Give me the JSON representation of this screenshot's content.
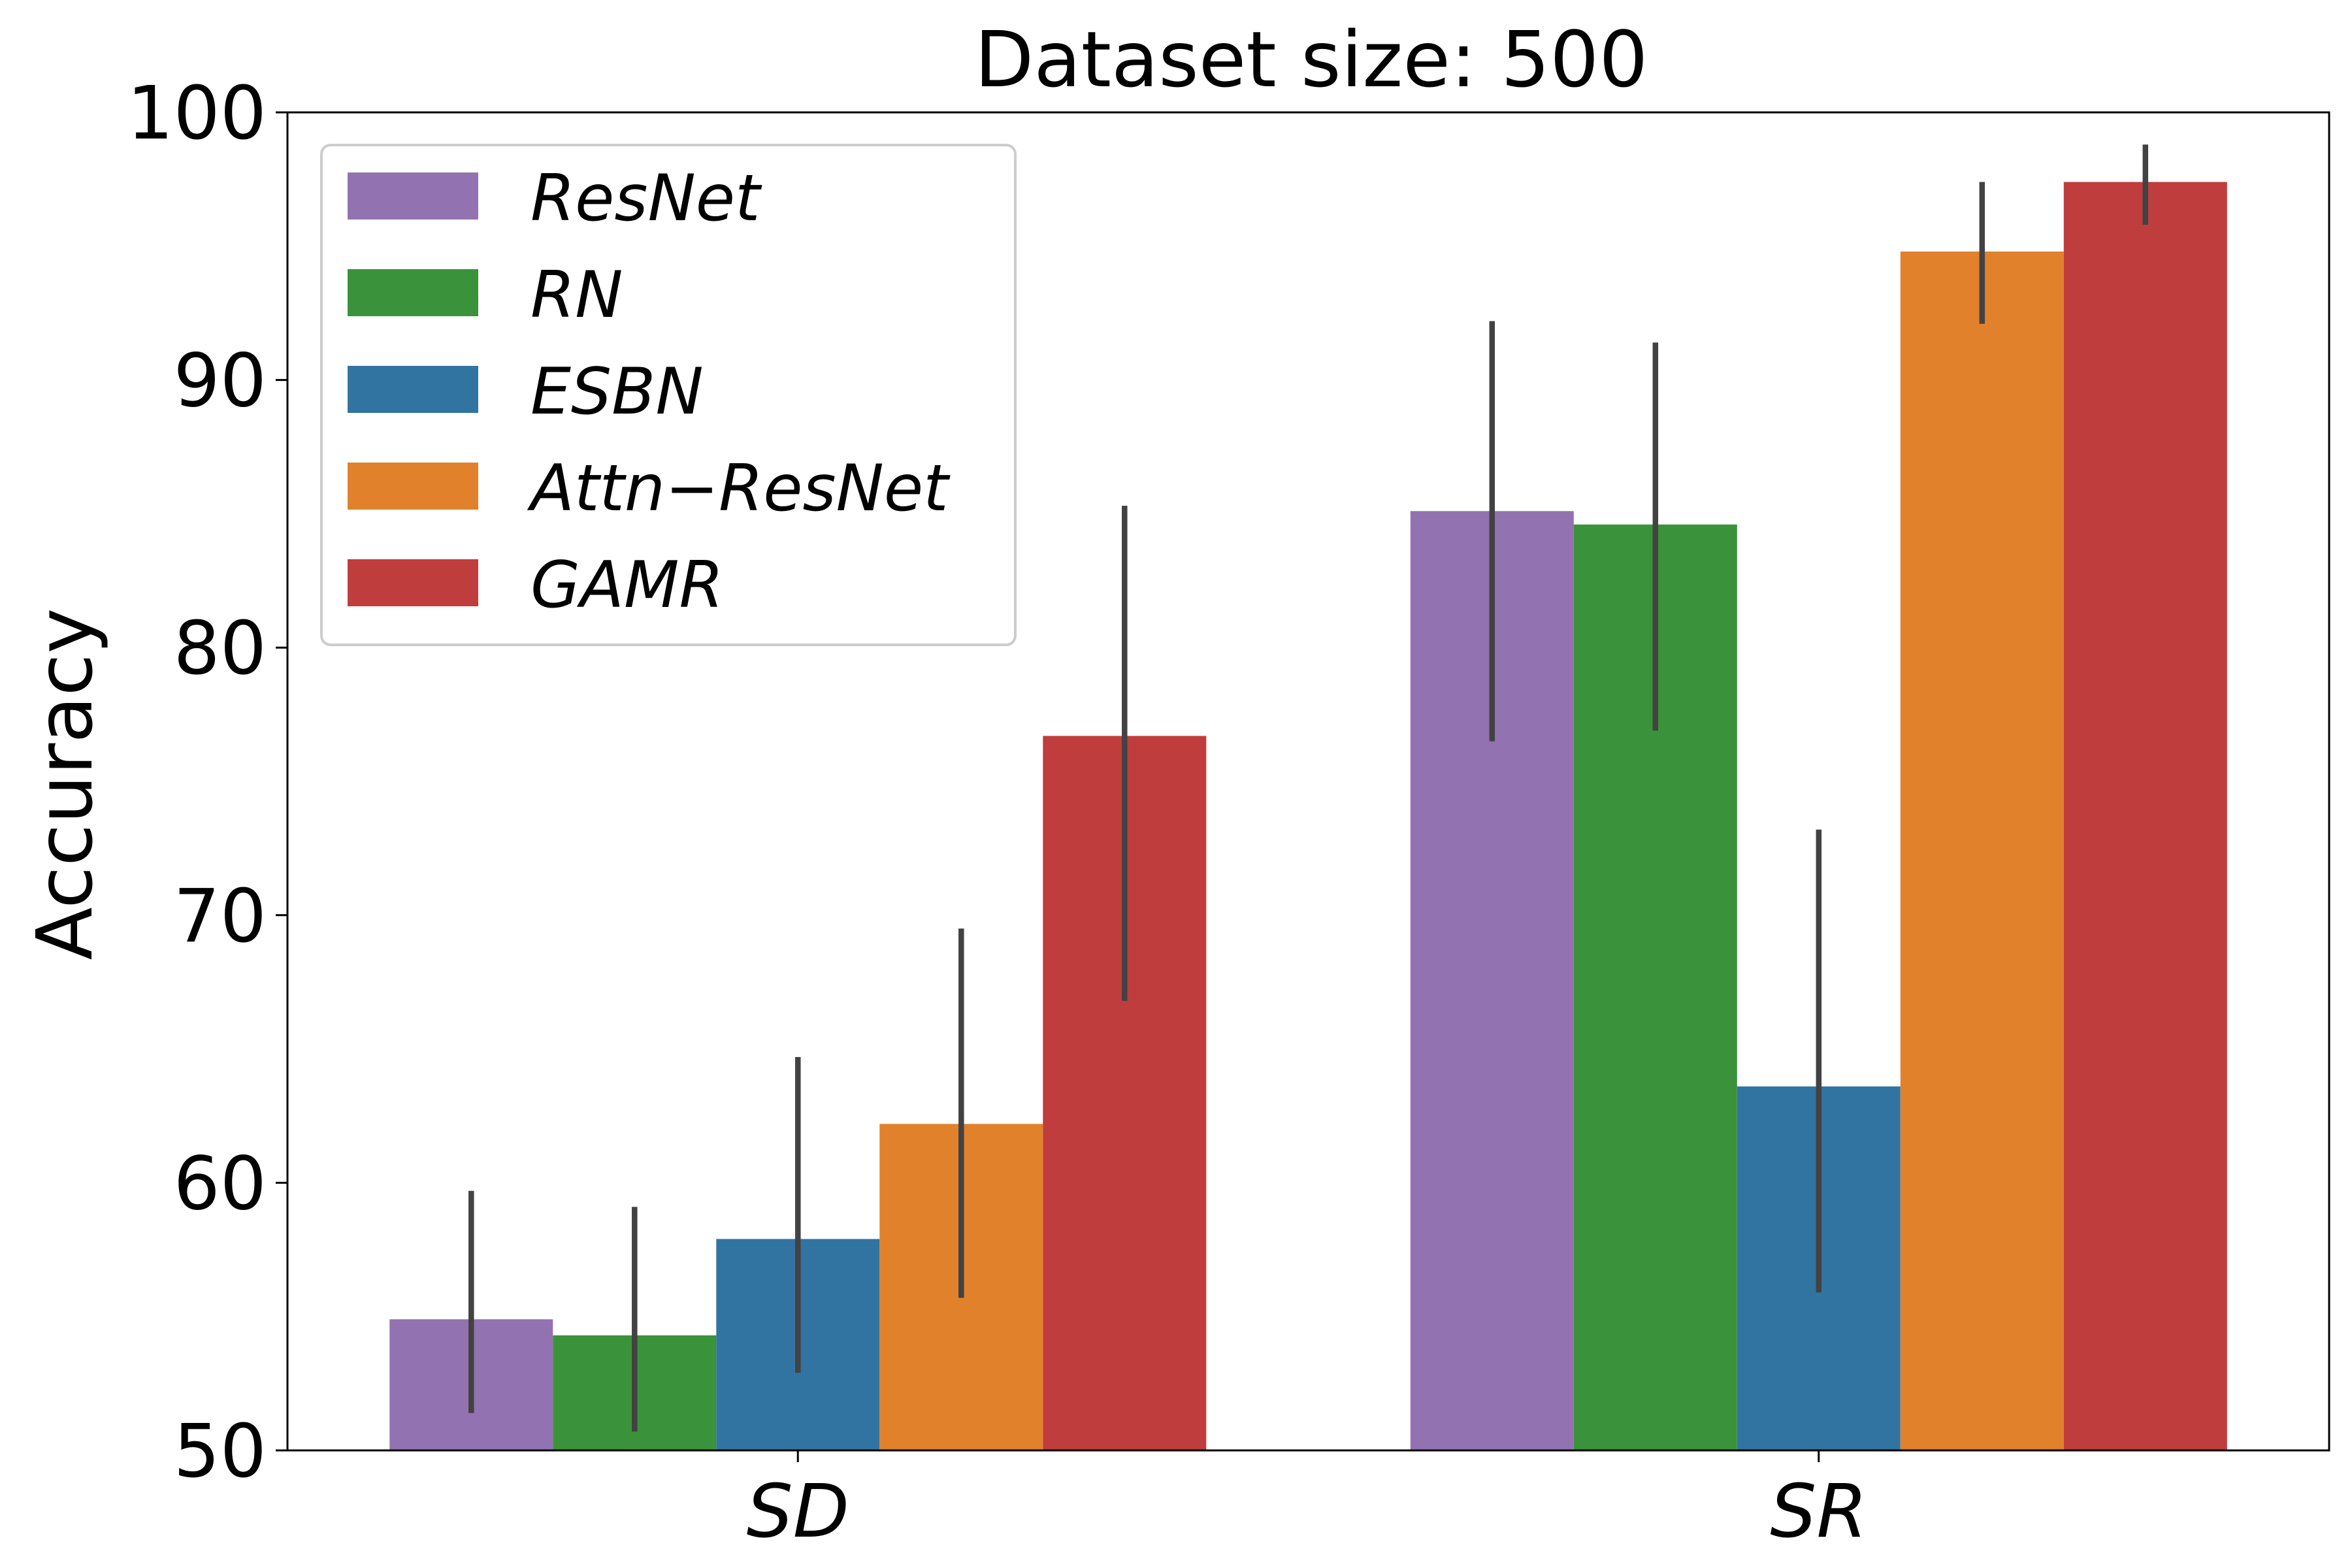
{
  "chart_data": {
    "type": "bar",
    "title": "Dataset size: 500",
    "xlabel": "",
    "ylabel": "Accuracy",
    "ylim": [
      50,
      100
    ],
    "yticks": [
      "50",
      "60",
      "70",
      "80",
      "90",
      "100"
    ],
    "yticks_values": [
      50,
      60,
      70,
      80,
      90,
      100
    ],
    "categories": [
      "SD",
      "SR"
    ],
    "grid": false,
    "legend_position": "top-left",
    "series": [
      {
        "name": "ResNet",
        "color": "#9372b1",
        "values": [
          54.9,
          85.1
        ],
        "err_low": [
          51.4,
          76.5
        ],
        "err_high": [
          59.7,
          92.2
        ]
      },
      {
        "name": "RN",
        "color": "#3a923a",
        "values": [
          54.3,
          84.6
        ],
        "err_low": [
          50.7,
          76.9
        ],
        "err_high": [
          59.1,
          91.4
        ]
      },
      {
        "name": "ESBN",
        "color": "#3274a1",
        "values": [
          57.9,
          63.6
        ],
        "err_low": [
          52.9,
          55.9
        ],
        "err_high": [
          64.7,
          73.2
        ]
      },
      {
        "name": "Attn−ResNet",
        "color": "#e1812c",
        "values": [
          62.2,
          94.8
        ],
        "err_low": [
          55.7,
          92.1
        ],
        "err_high": [
          69.5,
          97.4
        ]
      },
      {
        "name": "GAMR",
        "color": "#c03d3e",
        "values": [
          76.7,
          97.4
        ],
        "err_low": [
          66.8,
          95.8
        ],
        "err_high": [
          85.3,
          98.8
        ]
      }
    ]
  }
}
